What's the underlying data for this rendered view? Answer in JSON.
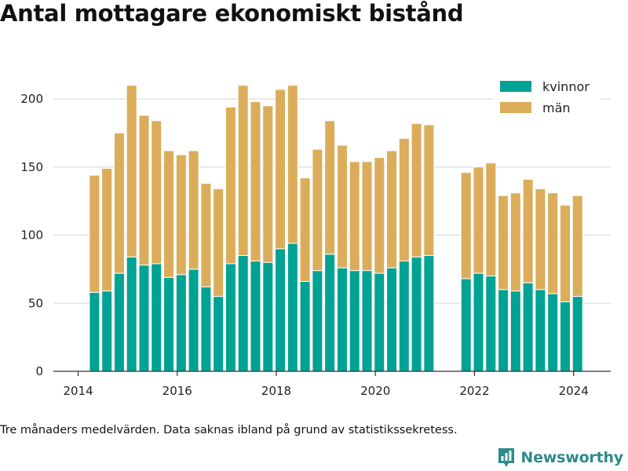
{
  "title": "Antal mottagare ekonomiskt bistånd",
  "footnote": "Tre månaders medelvärden. Data saknas ibland på grund av statistikssekretess.",
  "brand": {
    "name": "Newsworthy",
    "icon": "newsworthy-logo-icon",
    "color": "#2e8b8b"
  },
  "colors": {
    "kvinnor": "#00a293",
    "man": "#dbad5a",
    "grid": "#dddddd",
    "axis": "#333333"
  },
  "chart_data": {
    "type": "bar",
    "stacked": true,
    "title": "Antal mottagare ekonomiskt bistånd",
    "xlabel": "",
    "ylabel": "",
    "xlim": [
      2013.5,
      2024.75
    ],
    "ylim": [
      0,
      215
    ],
    "xticks": [
      2014,
      2016,
      2018,
      2020,
      2022,
      2024
    ],
    "yticks": [
      0,
      50,
      100,
      150,
      200
    ],
    "grid": true,
    "legend_position": "top-right",
    "x": [
      2014.33,
      2014.58,
      2014.83,
      2015.08,
      2015.33,
      2015.58,
      2015.83,
      2016.08,
      2016.33,
      2016.58,
      2016.83,
      2017.08,
      2017.33,
      2017.58,
      2017.83,
      2018.08,
      2018.33,
      2018.58,
      2018.83,
      2019.08,
      2019.33,
      2019.58,
      2019.83,
      2020.08,
      2020.33,
      2020.58,
      2020.83,
      2021.08,
      2021.83,
      2022.08,
      2022.33,
      2022.58,
      2022.83,
      2023.08,
      2023.33,
      2023.58,
      2023.83,
      2024.08
    ],
    "series": [
      {
        "name": "kvinnor",
        "color": "#00a293",
        "values": [
          58,
          59,
          72,
          84,
          78,
          79,
          69,
          71,
          75,
          62,
          55,
          79,
          85,
          81,
          80,
          90,
          94,
          66,
          74,
          86,
          76,
          74,
          74,
          72,
          76,
          81,
          84,
          85,
          68,
          72,
          70,
          60,
          59,
          65,
          60,
          57,
          51,
          55
        ]
      },
      {
        "name": "män",
        "color": "#dbad5a",
        "values": [
          86,
          90,
          103,
          126,
          110,
          105,
          93,
          88,
          87,
          76,
          79,
          115,
          125,
          117,
          115,
          117,
          116,
          76,
          89,
          98,
          90,
          80,
          80,
          85,
          86,
          90,
          98,
          96,
          78,
          78,
          83,
          69,
          72,
          76,
          74,
          74,
          71,
          74
        ]
      }
    ]
  }
}
